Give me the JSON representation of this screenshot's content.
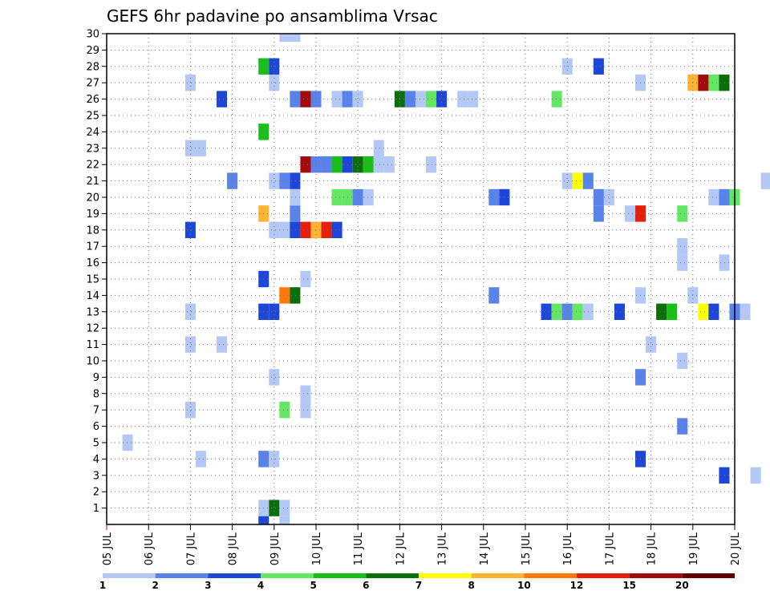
{
  "chart_data": {
    "type": "heatmap",
    "title": "GEFS 6hr padavine po ansamblima Vrsac",
    "x_tick_labels": [
      "05 JUL",
      "06 JUL",
      "07 JUL",
      "08 JUL",
      "09 JUL",
      "10 JUL",
      "11 JUL",
      "12 JUL",
      "13 JUL",
      "14 JUL",
      "15 JUL",
      "16 JUL",
      "17 JUL",
      "18 JUL",
      "19 JUL",
      "20 JUL"
    ],
    "x_range_days": [
      5,
      20
    ],
    "y_tick_labels": [
      "1",
      "2",
      "3",
      "4",
      "5",
      "6",
      "7",
      "8",
      "9",
      "10",
      "11",
      "12",
      "13",
      "14",
      "15",
      "16",
      "17",
      "18",
      "19",
      "20",
      "21",
      "22",
      "23",
      "24",
      "25",
      "26",
      "27",
      "28",
      "29",
      "30"
    ],
    "y_range": [
      0,
      30
    ],
    "grid": true,
    "colorbar": {
      "labels": [
        "1",
        "2",
        "3",
        "4",
        "5",
        "6",
        "7",
        "8",
        "10",
        "12",
        "15",
        "20"
      ],
      "colors": [
        "#b4c8f5",
        "#5a82eb",
        "#1e46d7",
        "#64e664",
        "#19be19",
        "#0a6e0a",
        "#ffff00",
        "#ffb432",
        "#ff780a",
        "#e61e0a",
        "#a50a0a",
        "#640000"
      ]
    },
    "cells": [
      {
        "member": 1,
        "day": 8.75,
        "level": 1
      },
      {
        "member": 1,
        "day": 9.0,
        "level": 6
      },
      {
        "member": 1,
        "day": 9.25,
        "level": 1
      },
      {
        "member": 3,
        "day": 19.75,
        "level": 3
      },
      {
        "member": 3,
        "day": 20.5,
        "level": 1
      },
      {
        "member": 4,
        "day": 7.25,
        "level": 1
      },
      {
        "member": 4,
        "day": 8.75,
        "level": 2
      },
      {
        "member": 4,
        "day": 9.0,
        "level": 1
      },
      {
        "member": 4,
        "day": 17.75,
        "level": 3
      },
      {
        "member": 5,
        "day": 5.5,
        "level": 1
      },
      {
        "member": 6,
        "day": 18.75,
        "level": 2
      },
      {
        "member": 7,
        "day": 7.0,
        "level": 1
      },
      {
        "member": 7,
        "day": 9.25,
        "level": 4
      },
      {
        "member": 7,
        "day": 9.75,
        "level": 1
      },
      {
        "member": 8,
        "day": 9.75,
        "level": 1
      },
      {
        "member": 9,
        "day": 9.0,
        "level": 1
      },
      {
        "member": 9,
        "day": 17.75,
        "level": 2
      },
      {
        "member": 10,
        "day": 18.75,
        "level": 1
      },
      {
        "member": 11,
        "day": 7.0,
        "level": 1
      },
      {
        "member": 11,
        "day": 7.75,
        "level": 1
      },
      {
        "member": 11,
        "day": 18.0,
        "level": 1
      },
      {
        "member": 13,
        "day": 7.0,
        "level": 1
      },
      {
        "member": 13,
        "day": 8.75,
        "level": 3
      },
      {
        "member": 13,
        "day": 9.0,
        "level": 3
      },
      {
        "member": 13,
        "day": 15.5,
        "level": 3
      },
      {
        "member": 13,
        "day": 15.75,
        "level": 4
      },
      {
        "member": 13,
        "day": 16.0,
        "level": 2
      },
      {
        "member": 13,
        "day": 16.25,
        "level": 4
      },
      {
        "member": 13,
        "day": 16.5,
        "level": 1
      },
      {
        "member": 13,
        "day": 17.25,
        "level": 3
      },
      {
        "member": 13,
        "day": 18.25,
        "level": 6
      },
      {
        "member": 13,
        "day": 18.5,
        "level": 5
      },
      {
        "member": 13,
        "day": 19.25,
        "level": 7
      },
      {
        "member": 13,
        "day": 19.5,
        "level": 3
      },
      {
        "member": 13,
        "day": 20.0,
        "level": 2
      },
      {
        "member": 13,
        "day": 20.25,
        "level": 1
      },
      {
        "member": 14,
        "day": 9.25,
        "level": 9
      },
      {
        "member": 14,
        "day": 9.5,
        "level": 6
      },
      {
        "member": 14,
        "day": 14.25,
        "level": 2
      },
      {
        "member": 14,
        "day": 17.75,
        "level": 1
      },
      {
        "member": 14,
        "day": 19.0,
        "level": 1
      },
      {
        "member": 15,
        "day": 8.75,
        "level": 3
      },
      {
        "member": 15,
        "day": 9.75,
        "level": 1
      },
      {
        "member": 16,
        "day": 18.75,
        "level": 1
      },
      {
        "member": 16,
        "day": 19.75,
        "level": 1
      },
      {
        "member": 17,
        "day": 18.75,
        "level": 1
      },
      {
        "member": 18,
        "day": 7.0,
        "level": 3
      },
      {
        "member": 18,
        "day": 9.0,
        "level": 1
      },
      {
        "member": 18,
        "day": 9.25,
        "level": 1
      },
      {
        "member": 18,
        "day": 9.5,
        "level": 3
      },
      {
        "member": 18,
        "day": 9.75,
        "level": 10
      },
      {
        "member": 18,
        "day": 10.0,
        "level": 8
      },
      {
        "member": 18,
        "day": 10.25,
        "level": 10
      },
      {
        "member": 18,
        "day": 10.5,
        "level": 3
      },
      {
        "member": 19,
        "day": 8.75,
        "level": 8
      },
      {
        "member": 19,
        "day": 9.5,
        "level": 2
      },
      {
        "member": 19,
        "day": 16.75,
        "level": 2
      },
      {
        "member": 19,
        "day": 17.5,
        "level": 1
      },
      {
        "member": 19,
        "day": 17.75,
        "level": 10
      },
      {
        "member": 19,
        "day": 18.75,
        "level": 4
      },
      {
        "member": 20,
        "day": 9.5,
        "level": 1
      },
      {
        "member": 20,
        "day": 10.5,
        "level": 4
      },
      {
        "member": 20,
        "day": 10.75,
        "level": 4
      },
      {
        "member": 20,
        "day": 11.0,
        "level": 2
      },
      {
        "member": 20,
        "day": 11.25,
        "level": 1
      },
      {
        "member": 20,
        "day": 14.25,
        "level": 2
      },
      {
        "member": 20,
        "day": 14.5,
        "level": 3
      },
      {
        "member": 20,
        "day": 16.75,
        "level": 2
      },
      {
        "member": 20,
        "day": 17.0,
        "level": 1
      },
      {
        "member": 20,
        "day": 19.5,
        "level": 1
      },
      {
        "member": 20,
        "day": 19.75,
        "level": 2
      },
      {
        "member": 20,
        "day": 20.0,
        "level": 4
      },
      {
        "member": 21,
        "day": 8.0,
        "level": 2
      },
      {
        "member": 21,
        "day": 9.0,
        "level": 1
      },
      {
        "member": 21,
        "day": 9.25,
        "level": 2
      },
      {
        "member": 21,
        "day": 9.5,
        "level": 3
      },
      {
        "member": 21,
        "day": 16.0,
        "level": 1
      },
      {
        "member": 21,
        "day": 16.25,
        "level": 7
      },
      {
        "member": 21,
        "day": 16.5,
        "level": 2
      },
      {
        "member": 21,
        "day": 20.75,
        "level": 1
      },
      {
        "member": 22,
        "day": 9.75,
        "level": 11
      },
      {
        "member": 22,
        "day": 10.0,
        "level": 2
      },
      {
        "member": 22,
        "day": 10.25,
        "level": 2
      },
      {
        "member": 22,
        "day": 10.5,
        "level": 5
      },
      {
        "member": 22,
        "day": 10.75,
        "level": 3
      },
      {
        "member": 22,
        "day": 11.0,
        "level": 6
      },
      {
        "member": 22,
        "day": 11.25,
        "level": 5
      },
      {
        "member": 22,
        "day": 11.5,
        "level": 1
      },
      {
        "member": 22,
        "day": 11.75,
        "level": 1
      },
      {
        "member": 22,
        "day": 12.75,
        "level": 1
      },
      {
        "member": 23,
        "day": 7.0,
        "level": 1
      },
      {
        "member": 23,
        "day": 7.25,
        "level": 1
      },
      {
        "member": 23,
        "day": 11.5,
        "level": 1
      },
      {
        "member": 24,
        "day": 8.75,
        "level": 5
      },
      {
        "member": 26,
        "day": 7.75,
        "level": 3
      },
      {
        "member": 26,
        "day": 9.5,
        "level": 2
      },
      {
        "member": 26,
        "day": 9.75,
        "level": 11
      },
      {
        "member": 26,
        "day": 10.0,
        "level": 2
      },
      {
        "member": 26,
        "day": 10.5,
        "level": 1
      },
      {
        "member": 26,
        "day": 10.75,
        "level": 2
      },
      {
        "member": 26,
        "day": 11.0,
        "level": 1
      },
      {
        "member": 26,
        "day": 12.0,
        "level": 6
      },
      {
        "member": 26,
        "day": 12.25,
        "level": 2
      },
      {
        "member": 26,
        "day": 12.5,
        "level": 1
      },
      {
        "member": 26,
        "day": 12.75,
        "level": 4
      },
      {
        "member": 26,
        "day": 13.0,
        "level": 3
      },
      {
        "member": 26,
        "day": 13.5,
        "level": 1
      },
      {
        "member": 26,
        "day": 13.75,
        "level": 1
      },
      {
        "member": 26,
        "day": 15.75,
        "level": 4
      },
      {
        "member": 27,
        "day": 7.0,
        "level": 1
      },
      {
        "member": 27,
        "day": 9.0,
        "level": 1
      },
      {
        "member": 27,
        "day": 17.75,
        "level": 1
      },
      {
        "member": 27,
        "day": 19.0,
        "level": 8
      },
      {
        "member": 27,
        "day": 19.25,
        "level": 11
      },
      {
        "member": 27,
        "day": 19.5,
        "level": 4
      },
      {
        "member": 27,
        "day": 19.75,
        "level": 6
      },
      {
        "member": 28,
        "day": 8.75,
        "level": 5
      },
      {
        "member": 28,
        "day": 9.0,
        "level": 3
      },
      {
        "member": 28,
        "day": 16.0,
        "level": 1
      },
      {
        "member": 28,
        "day": 16.75,
        "level": 3
      },
      {
        "member": 30,
        "day": 9.25,
        "level": 1
      },
      {
        "member": 30,
        "day": 9.5,
        "level": 1
      },
      {
        "member": 0,
        "day": 8.75,
        "level": 3
      },
      {
        "member": 0,
        "day": 9.25,
        "level": 1
      }
    ]
  }
}
